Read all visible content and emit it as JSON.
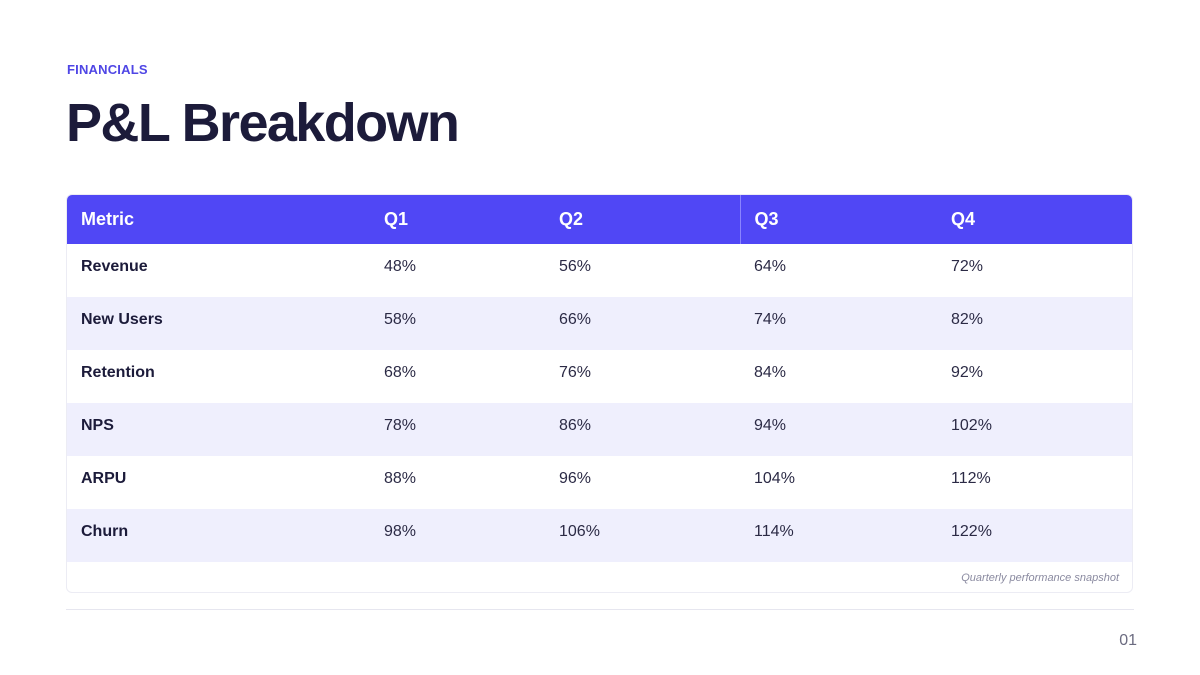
{
  "slide": {
    "eyebrow": "FINANCIALS",
    "title": "P&L Breakdown",
    "page_number": "01"
  },
  "table": {
    "headers": [
      "Metric",
      "Q1",
      "Q2",
      "Q3",
      "Q4"
    ],
    "rows": [
      [
        "Revenue",
        "48%",
        "56%",
        "64%",
        "72%"
      ],
      [
        "New Users",
        "58%",
        "66%",
        "74%",
        "82%"
      ],
      [
        "Retention",
        "68%",
        "76%",
        "84%",
        "92%"
      ],
      [
        "NPS",
        "78%",
        "86%",
        "94%",
        "102%"
      ],
      [
        "ARPU",
        "88%",
        "96%",
        "104%",
        "112%"
      ],
      [
        "Churn",
        "98%",
        "106%",
        "114%",
        "122%"
      ]
    ],
    "caption": "Quarterly performance snapshot"
  },
  "colors": {
    "accent": "#5047f5",
    "eyebrow": "#4f46e5",
    "title": "#1c1b3a",
    "stripe": "#efeffd"
  }
}
